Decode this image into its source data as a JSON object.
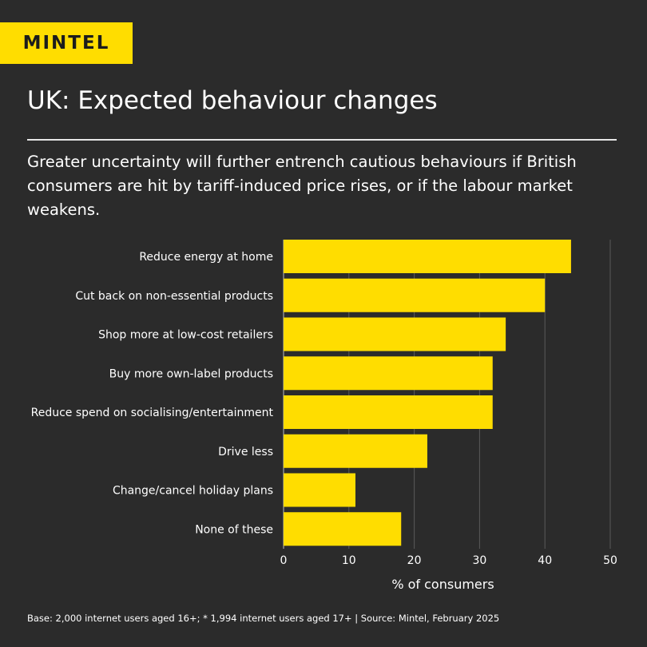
{
  "brand": {
    "logo_text": "MINTEL",
    "accent": "#ffdd00",
    "background": "#2b2b2b"
  },
  "header": {
    "title": "UK: Expected behaviour changes",
    "subtitle": "Greater uncertainty will further entrench cautious behaviours if British consumers are hit by tariff-induced price rises, or if the labour market weakens."
  },
  "chart_data": {
    "type": "bar",
    "orientation": "horizontal",
    "categories": [
      "Reduce energy at home",
      "Cut back on non-essential products",
      "Shop more at low-cost retailers",
      "Buy more own-label products",
      "Reduce spend on socialising/entertainment",
      "Drive less",
      "Change/cancel holiday plans",
      "None of these"
    ],
    "values": [
      44,
      40,
      34,
      32,
      32,
      22,
      11,
      18
    ],
    "xlabel": "% of consumers",
    "ylabel": "",
    "xlim": [
      0,
      50
    ],
    "ticks": [
      "0",
      "10",
      "20",
      "30",
      "40",
      "50"
    ],
    "grid": "vertical",
    "bar_color": "#ffdd00"
  },
  "footer": {
    "note": "Base: 2,000 internet users aged 16+; * 1,994 internet users aged 17+ | Source: Mintel, February 2025"
  }
}
